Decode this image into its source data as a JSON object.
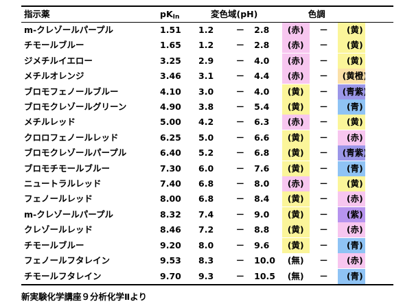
{
  "headers": {
    "name": "指示薬",
    "pk_main": "pK",
    "pk_sub": "In",
    "range": "変色域(pH)",
    "color": "色調"
  },
  "dash": "－",
  "colors": {
    "赤": "#f7c6ef",
    "黄": "#fbf59a",
    "黄橙": "#fbe0a8",
    "青紫": "#9c97e8",
    "青": "#8fc3f4",
    "紫": "#b794ee",
    "無": "#ffffff"
  },
  "rows": [
    {
      "name": "m-クレゾールパープル",
      "pk": "1.51",
      "lo": "1.2",
      "hi": "2.8",
      "acid_key": "赤",
      "acid": "(赤)",
      "base_key": "黄",
      "base": "(黄)"
    },
    {
      "name": "チモールブルー",
      "pk": "1.65",
      "lo": "1.2",
      "hi": "2.8",
      "acid_key": "赤",
      "acid": "(赤)",
      "base_key": "黄",
      "base": "(黄)"
    },
    {
      "name": "ジメチルイエロー",
      "pk": "3.25",
      "lo": "2.9",
      "hi": "4.0",
      "acid_key": "赤",
      "acid": "(赤)",
      "base_key": "黄",
      "base": "(黄)"
    },
    {
      "name": "メチルオレンジ",
      "pk": "3.46",
      "lo": "3.1",
      "hi": "4.4",
      "acid_key": "赤",
      "acid": "(赤)",
      "base_key": "黄橙",
      "base": "(黄橙)"
    },
    {
      "name": "ブロモフェノールブルー",
      "pk": "4.10",
      "lo": "3.0",
      "hi": "4.0",
      "acid_key": "黄",
      "acid": "(黄)",
      "base_key": "青紫",
      "base": "(青紫)"
    },
    {
      "name": "ブロモクレゾールグリーン",
      "pk": "4.90",
      "lo": "3.8",
      "hi": "5.4",
      "acid_key": "黄",
      "acid": "(黄)",
      "base_key": "青",
      "base": "(青)"
    },
    {
      "name": "メチルレッド",
      "pk": "5.00",
      "lo": "4.2",
      "hi": "6.3",
      "acid_key": "赤",
      "acid": "(赤)",
      "base_key": "黄",
      "base": "(黄)"
    },
    {
      "name": "クロロフェノールレッド",
      "pk": "6.25",
      "lo": "5.0",
      "hi": "6.6",
      "acid_key": "黄",
      "acid": "(黄)",
      "base_key": "赤",
      "base": "(赤)"
    },
    {
      "name": "ブロモクレゾールパープル",
      "pk": "6.40",
      "lo": "5.2",
      "hi": "6.8",
      "acid_key": "黄",
      "acid": "(黄)",
      "base_key": "青紫",
      "base": "(青紫)"
    },
    {
      "name": "ブロモチモールブルー",
      "pk": "7.30",
      "lo": "6.0",
      "hi": "7.6",
      "acid_key": "黄",
      "acid": "(黄)",
      "base_key": "青",
      "base": "(青)"
    },
    {
      "name": "ニュートラルレッド",
      "pk": "7.40",
      "lo": "6.8",
      "hi": "8.0",
      "acid_key": "赤",
      "acid": "(赤)",
      "base_key": "黄",
      "base": "(黄)"
    },
    {
      "name": "フェノールレッド",
      "pk": "8.00",
      "lo": "6.8",
      "hi": "8.4",
      "acid_key": "黄",
      "acid": "(黄)",
      "base_key": "赤",
      "base": "(赤)"
    },
    {
      "name": "m-クレゾールパープル",
      "pk": "8.32",
      "lo": "7.4",
      "hi": "9.0",
      "acid_key": "黄",
      "acid": "(黄)",
      "base_key": "紫",
      "base": "(紫)"
    },
    {
      "name": "クレゾールレッド",
      "pk": "8.46",
      "lo": "7.2",
      "hi": "8.8",
      "acid_key": "黄",
      "acid": "(黄)",
      "base_key": "赤",
      "base": "(赤)"
    },
    {
      "name": "チモールブルー",
      "pk": "9.20",
      "lo": "8.0",
      "hi": "9.6",
      "acid_key": "黄",
      "acid": "(黄)",
      "base_key": "青",
      "base": "(青)"
    },
    {
      "name": "フェノールフタレイン",
      "pk": "9.53",
      "lo": "8.3",
      "hi": "10.0",
      "acid_key": "無",
      "acid": "(無)",
      "base_key": "赤",
      "base": "(赤)"
    },
    {
      "name": "チモールフタレイン",
      "pk": "9.70",
      "lo": "9.3",
      "hi": "10.5",
      "acid_key": "無",
      "acid": "(無)",
      "base_key": "青",
      "base": "(青)"
    }
  ],
  "source": "新実験化学講座９分析化学Ⅱより"
}
